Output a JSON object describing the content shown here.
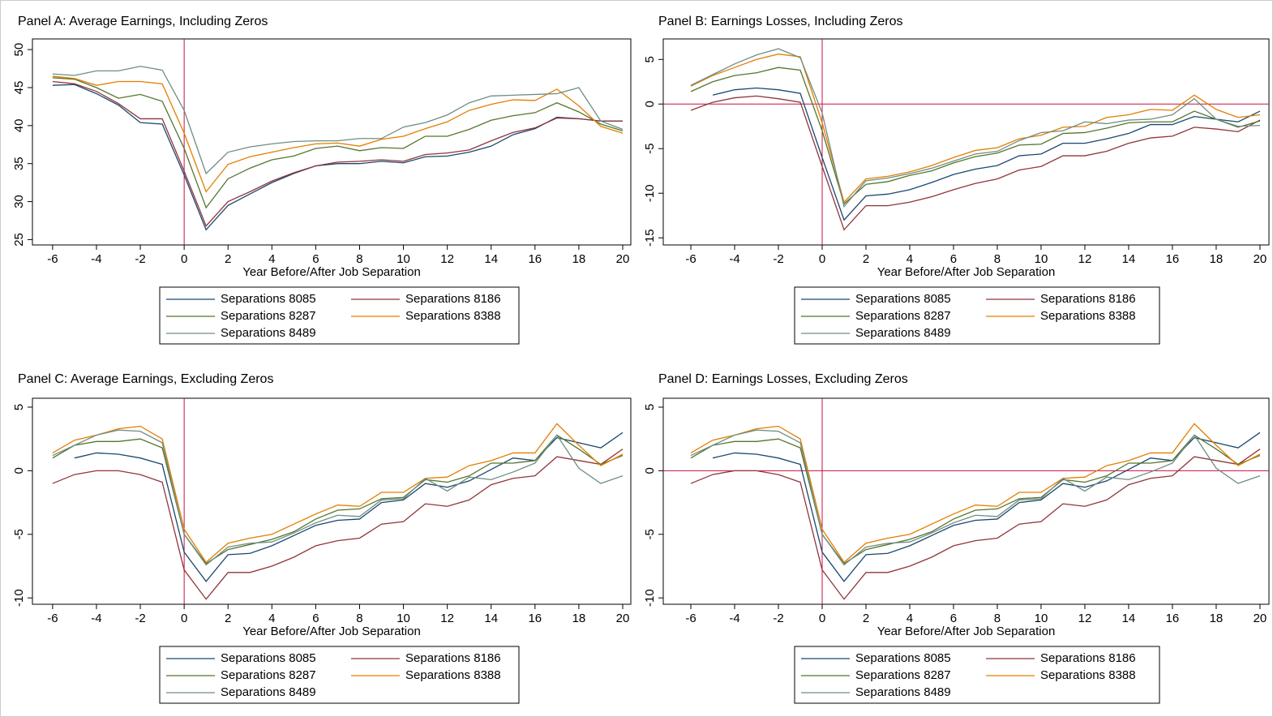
{
  "chart_data": [
    {
      "type": "line",
      "title": "Panel A: Average Earnings, Including Zeros",
      "xlabel": "Year Before/After Job Separation",
      "x": [
        -6,
        -5,
        -4,
        -3,
        -2,
        -1,
        0,
        1,
        2,
        3,
        4,
        5,
        6,
        7,
        8,
        9,
        10,
        11,
        12,
        13,
        14,
        15,
        16,
        17,
        18,
        19,
        20
      ],
      "xlim": [
        -6.92,
        20.37
      ],
      "ylim": [
        24.3,
        51.4
      ],
      "xticks": [
        -6,
        -4,
        -2,
        0,
        2,
        4,
        6,
        8,
        10,
        12,
        14,
        16,
        18,
        20
      ],
      "yticks": [
        25,
        30,
        35,
        40,
        45,
        50
      ],
      "vlines": [
        0
      ],
      "hlines": [],
      "series": [
        {
          "name": "Separations 8085",
          "color": "#1a476f",
          "values": [
            45.3,
            45.4,
            44.2,
            42.7,
            40.4,
            40.2,
            33.5,
            26.3,
            29.5,
            31.0,
            32.5,
            33.7,
            34.7,
            35.0,
            35.0,
            35.3,
            35.1,
            35.9,
            36.0,
            36.5,
            37.3,
            38.8,
            39.6,
            41.1,
            40.9,
            40.6,
            40.6
          ]
        },
        {
          "name": "Separations 8186",
          "color": "#90353b",
          "values": [
            45.8,
            45.5,
            44.5,
            42.9,
            40.9,
            40.9,
            34.0,
            26.8,
            30.0,
            31.3,
            32.7,
            33.8,
            34.7,
            35.2,
            35.3,
            35.5,
            35.3,
            36.2,
            36.4,
            36.8,
            38.0,
            39.1,
            39.7,
            41.0,
            40.9,
            40.6,
            40.6
          ]
        },
        {
          "name": "Separations 8287",
          "color": "#55752f",
          "values": [
            46.3,
            46.1,
            45.0,
            43.6,
            44.1,
            43.2,
            37.0,
            29.2,
            33.0,
            34.4,
            35.5,
            36.0,
            37.0,
            37.3,
            36.7,
            37.1,
            37.0,
            38.6,
            38.6,
            39.5,
            40.7,
            41.3,
            41.7,
            43.0,
            41.8,
            40.2,
            39.3
          ]
        },
        {
          "name": "Separations 8388",
          "color": "#e37e00",
          "values": [
            46.5,
            46.2,
            45.3,
            45.8,
            45.8,
            45.5,
            39.0,
            31.3,
            34.9,
            35.9,
            36.5,
            37.1,
            37.6,
            37.7,
            37.3,
            38.2,
            38.6,
            39.6,
            40.5,
            42.0,
            42.8,
            43.4,
            43.3,
            44.8,
            42.6,
            39.9,
            39.0
          ]
        },
        {
          "name": "Separations 8489",
          "color": "#6e8e84",
          "values": [
            46.8,
            46.6,
            47.2,
            47.2,
            47.8,
            47.3,
            42.0,
            33.7,
            36.5,
            37.2,
            37.6,
            37.9,
            38.0,
            38.0,
            38.3,
            38.3,
            39.8,
            40.4,
            41.4,
            43.0,
            43.9,
            44.0,
            44.1,
            44.2,
            45.0,
            40.6,
            39.5
          ]
        }
      ]
    },
    {
      "type": "line",
      "title": "Panel B: Earnings Losses, Including Zeros",
      "xlabel": "Year Before/After Job Separation",
      "x": [
        -6,
        -5,
        -4,
        -3,
        -2,
        -1,
        0,
        1,
        2,
        3,
        4,
        5,
        6,
        7,
        8,
        9,
        10,
        11,
        12,
        13,
        14,
        15,
        16,
        17,
        18,
        19,
        20
      ],
      "xlim": [
        -7.26,
        20.41
      ],
      "ylim": [
        -15.8,
        7.3
      ],
      "xticks": [
        -6,
        -4,
        -2,
        0,
        2,
        4,
        6,
        8,
        10,
        12,
        14,
        16,
        18,
        20
      ],
      "yticks": [
        -15,
        -10,
        -5,
        0,
        5
      ],
      "vlines": [
        0
      ],
      "hlines": [
        0
      ],
      "series": [
        {
          "name": "Separations 8085",
          "color": "#1a476f",
          "values": [
            null,
            1.0,
            1.6,
            1.8,
            1.6,
            1.2,
            -6.0,
            -13.0,
            -10.3,
            -10.1,
            -9.6,
            -8.8,
            -7.9,
            -7.3,
            -6.9,
            -5.8,
            -5.6,
            -4.4,
            -4.4,
            -3.9,
            -3.3,
            -2.3,
            -2.3,
            -1.4,
            -1.7,
            -2.0,
            -0.8
          ]
        },
        {
          "name": "Separations 8186",
          "color": "#90353b",
          "values": [
            -0.7,
            0.2,
            0.7,
            0.9,
            0.6,
            0.2,
            -7.0,
            -14.1,
            -11.4,
            -11.4,
            -11.0,
            -10.4,
            -9.6,
            -8.9,
            -8.4,
            -7.4,
            -7.0,
            -5.8,
            -5.8,
            -5.3,
            -4.4,
            -3.8,
            -3.6,
            -2.6,
            -2.8,
            -3.1,
            -1.8
          ]
        },
        {
          "name": "Separations 8287",
          "color": "#55752f",
          "values": [
            1.4,
            2.5,
            3.2,
            3.5,
            4.1,
            3.8,
            -3.0,
            -11.2,
            -9.0,
            -8.7,
            -8.0,
            -7.5,
            -6.6,
            -5.9,
            -5.5,
            -4.6,
            -4.5,
            -3.3,
            -3.2,
            -2.7,
            -2.1,
            -2.0,
            -2.0,
            -0.8,
            -1.7,
            -2.6,
            -1.9
          ]
        },
        {
          "name": "Separations 8388",
          "color": "#e37e00",
          "values": [
            2.0,
            3.2,
            4.1,
            5.0,
            5.6,
            5.3,
            -2.1,
            -11.0,
            -8.4,
            -8.1,
            -7.6,
            -6.9,
            -6.0,
            -5.2,
            -4.9,
            -3.9,
            -3.5,
            -2.6,
            -2.5,
            -1.5,
            -1.2,
            -0.6,
            -0.7,
            1.0,
            -0.6,
            -1.5,
            -1.2
          ]
        },
        {
          "name": "Separations 8489",
          "color": "#6e8e84",
          "values": [
            2.1,
            3.3,
            4.5,
            5.5,
            6.2,
            5.2,
            -1.0,
            -11.5,
            -8.6,
            -8.3,
            -7.8,
            -7.2,
            -6.4,
            -5.6,
            -5.3,
            -4.1,
            -3.2,
            -3.0,
            -2.0,
            -2.2,
            -1.8,
            -1.7,
            -1.2,
            0.6,
            -1.7,
            -2.5,
            -2.4
          ]
        }
      ]
    },
    {
      "type": "line",
      "title": "Panel C: Average Earnings, Excluding Zeros",
      "xlabel": "Year Before/After Job Separation",
      "x": [
        -6,
        -5,
        -4,
        -3,
        -2,
        -1,
        0,
        1,
        2,
        3,
        4,
        5,
        6,
        7,
        8,
        9,
        10,
        11,
        12,
        13,
        14,
        15,
        16,
        17,
        18,
        19,
        20
      ],
      "xlim": [
        -6.92,
        20.37
      ],
      "ylim": [
        -10.5,
        5.7
      ],
      "xticks": [
        -6,
        -4,
        -2,
        0,
        2,
        4,
        6,
        8,
        10,
        12,
        14,
        16,
        18,
        20
      ],
      "yticks": [
        -10,
        -5,
        0,
        5
      ],
      "vlines": [
        0
      ],
      "hlines": [],
      "series": [
        {
          "name": "Separations 8085",
          "color": "#1a476f",
          "values": [
            null,
            1.0,
            1.4,
            1.3,
            1.0,
            0.5,
            -6.4,
            -8.7,
            -6.6,
            -6.5,
            -5.9,
            -5.1,
            -4.3,
            -3.9,
            -3.8,
            -2.5,
            -2.3,
            -1.0,
            -1.3,
            -0.8,
            0.1,
            1.0,
            0.8,
            2.6,
            2.2,
            1.8,
            3.0
          ]
        },
        {
          "name": "Separations 8186",
          "color": "#90353b",
          "values": [
            -1.0,
            -0.3,
            0.0,
            0.0,
            -0.3,
            -0.9,
            -7.8,
            -10.1,
            -8.0,
            -8.0,
            -7.5,
            -6.8,
            -5.9,
            -5.5,
            -5.3,
            -4.2,
            -4.0,
            -2.6,
            -2.8,
            -2.3,
            -1.1,
            -0.6,
            -0.4,
            1.1,
            0.8,
            0.5,
            1.7
          ]
        },
        {
          "name": "Separations 8287",
          "color": "#55752f",
          "values": [
            1.0,
            2.0,
            2.3,
            2.3,
            2.5,
            1.8,
            -5.0,
            -7.3,
            -6.2,
            -5.8,
            -5.4,
            -4.8,
            -3.8,
            -3.1,
            -3.0,
            -2.2,
            -2.1,
            -0.7,
            -0.9,
            -0.4,
            0.6,
            0.6,
            0.8,
            2.8,
            1.7,
            0.5,
            1.2
          ]
        },
        {
          "name": "Separations 8388",
          "color": "#e37e00",
          "values": [
            1.4,
            2.4,
            2.8,
            3.3,
            3.5,
            2.5,
            -4.6,
            -7.2,
            -5.7,
            -5.3,
            -5.0,
            -4.2,
            -3.4,
            -2.7,
            -2.8,
            -1.7,
            -1.7,
            -0.6,
            -0.5,
            0.4,
            0.8,
            1.4,
            1.4,
            3.7,
            2.0,
            0.4,
            1.3
          ]
        },
        {
          "name": "Separations 8489",
          "color": "#6e8e84",
          "values": [
            1.2,
            2.0,
            2.8,
            3.2,
            3.1,
            2.2,
            -5.0,
            -7.4,
            -6.0,
            -5.7,
            -5.6,
            -4.9,
            -4.1,
            -3.5,
            -3.6,
            -2.3,
            -2.2,
            -0.6,
            -1.6,
            -0.5,
            -0.7,
            -0.1,
            0.6,
            2.8,
            0.2,
            -1.0,
            -0.4
          ]
        }
      ]
    },
    {
      "type": "line",
      "title": "Panel D: Earnings Losses, Excluding Zeros",
      "xlabel": "Year Before/After Job Separation",
      "x": [
        -6,
        -5,
        -4,
        -3,
        -2,
        -1,
        0,
        1,
        2,
        3,
        4,
        5,
        6,
        7,
        8,
        9,
        10,
        11,
        12,
        13,
        14,
        15,
        16,
        17,
        18,
        19,
        20
      ],
      "xlim": [
        -7.26,
        20.41
      ],
      "ylim": [
        -10.5,
        5.7
      ],
      "xticks": [
        -6,
        -4,
        -2,
        0,
        2,
        4,
        6,
        8,
        10,
        12,
        14,
        16,
        18,
        20
      ],
      "yticks": [
        -10,
        -5,
        0,
        5
      ],
      "vlines": [
        0
      ],
      "hlines": [
        0
      ],
      "series": [
        {
          "name": "Separations 8085",
          "color": "#1a476f",
          "values": [
            null,
            1.0,
            1.4,
            1.3,
            1.0,
            0.5,
            -6.4,
            -8.7,
            -6.6,
            -6.5,
            -5.9,
            -5.1,
            -4.3,
            -3.9,
            -3.8,
            -2.5,
            -2.3,
            -1.0,
            -1.3,
            -0.8,
            0.1,
            1.0,
            0.8,
            2.6,
            2.2,
            1.8,
            3.0
          ]
        },
        {
          "name": "Separations 8186",
          "color": "#90353b",
          "values": [
            -1.0,
            -0.3,
            0.0,
            0.0,
            -0.3,
            -0.9,
            -7.8,
            -10.1,
            -8.0,
            -8.0,
            -7.5,
            -6.8,
            -5.9,
            -5.5,
            -5.3,
            -4.2,
            -4.0,
            -2.6,
            -2.8,
            -2.3,
            -1.1,
            -0.6,
            -0.4,
            1.1,
            0.8,
            0.5,
            1.7
          ]
        },
        {
          "name": "Separations 8287",
          "color": "#55752f",
          "values": [
            1.0,
            2.0,
            2.3,
            2.3,
            2.5,
            1.8,
            -5.0,
            -7.3,
            -6.2,
            -5.8,
            -5.4,
            -4.8,
            -3.8,
            -3.1,
            -3.0,
            -2.2,
            -2.1,
            -0.7,
            -0.9,
            -0.4,
            0.6,
            0.6,
            0.8,
            2.8,
            1.7,
            0.5,
            1.2
          ]
        },
        {
          "name": "Separations 8388",
          "color": "#e37e00",
          "values": [
            1.4,
            2.4,
            2.8,
            3.3,
            3.5,
            2.5,
            -4.6,
            -7.2,
            -5.7,
            -5.3,
            -5.0,
            -4.2,
            -3.4,
            -2.7,
            -2.8,
            -1.7,
            -1.7,
            -0.6,
            -0.5,
            0.4,
            0.8,
            1.4,
            1.4,
            3.7,
            2.0,
            0.4,
            1.3
          ]
        },
        {
          "name": "Separations 8489",
          "color": "#6e8e84",
          "values": [
            1.2,
            2.0,
            2.8,
            3.2,
            3.1,
            2.2,
            -5.0,
            -7.4,
            -6.0,
            -5.7,
            -5.6,
            -4.9,
            -4.1,
            -3.5,
            -3.6,
            -2.3,
            -2.2,
            -0.6,
            -1.6,
            -0.5,
            -0.7,
            -0.1,
            0.6,
            2.8,
            0.2,
            -1.0,
            -0.4
          ]
        }
      ]
    }
  ]
}
